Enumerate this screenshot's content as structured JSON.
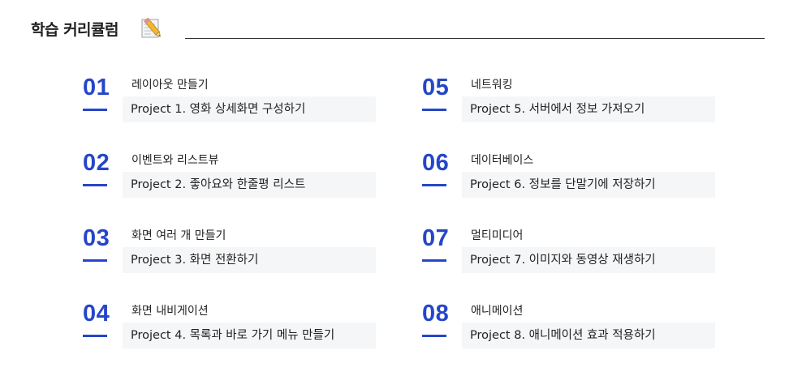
{
  "header": {
    "title": "학습 커리큘럼",
    "icon": "memo-pencil-icon"
  },
  "accent_color": "#2546c9",
  "left": [
    {
      "num": "01",
      "heading": "레이아웃 만들기",
      "project": "Project 1. 영화 상세화면 구성하기"
    },
    {
      "num": "02",
      "heading": "이벤트와 리스트뷰",
      "project": "Project 2. 좋아요와 한줄평 리스트"
    },
    {
      "num": "03",
      "heading": "화면 여러 개 만들기",
      "project": "Project 3. 화면 전환하기"
    },
    {
      "num": "04",
      "heading": "화면 내비게이션",
      "project": "Project 4. 목록과 바로 가기 메뉴 만들기"
    }
  ],
  "right": [
    {
      "num": "05",
      "heading": "네트워킹",
      "project": "Project 5. 서버에서 정보 가져오기"
    },
    {
      "num": "06",
      "heading": "데이터베이스",
      "project": "Project 6. 정보를 단말기에 저장하기"
    },
    {
      "num": "07",
      "heading": "멀티미디어",
      "project": "Project 7. 이미지와 동영상 재생하기"
    },
    {
      "num": "08",
      "heading": "애니메이션",
      "project": "Project 8. 애니메이션 효과 적용하기"
    }
  ]
}
